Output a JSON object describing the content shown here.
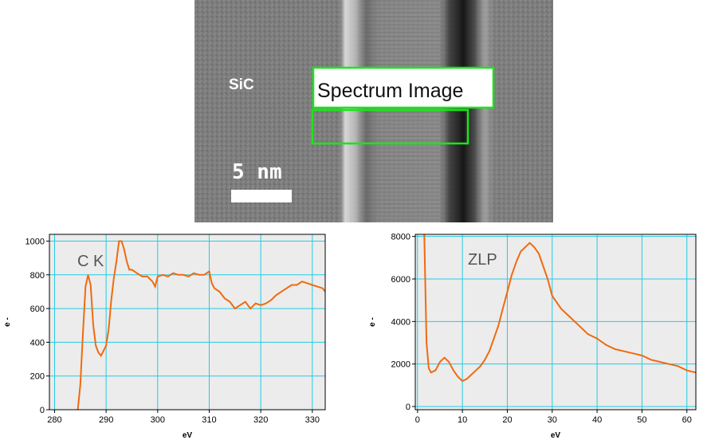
{
  "micrograph": {
    "material_label": "SiC",
    "overlay_label": "Spectrum Image",
    "scalebar_label": "5 nm",
    "region_color": "#19e619"
  },
  "colors": {
    "series": "#f06a10",
    "grid": "#22cbe3",
    "plot_bg": "#ececec"
  },
  "chart_data": [
    {
      "type": "line",
      "annotation": "C K",
      "xlabel": "eV",
      "ylabel": "e -",
      "xlim": [
        279,
        332.5
      ],
      "ylim": [
        0,
        1040
      ],
      "xticks": [
        280,
        290,
        300,
        310,
        320,
        330
      ],
      "yticks": [
        0,
        200,
        400,
        600,
        800,
        1000
      ],
      "grid": true,
      "series": [
        {
          "x": [
            284.5,
            285.0,
            285.5,
            286.0,
            286.5,
            287.0,
            287.5,
            288.0,
            288.5,
            289.0,
            289.5,
            290.0,
            290.5,
            291.0,
            291.5,
            292.0,
            292.5,
            293.0,
            293.5,
            294.0,
            294.5,
            295.0,
            296.0,
            297.0,
            298.0,
            299.0,
            299.5,
            300.0,
            301.0,
            302.0,
            303.0,
            304.0,
            305.0,
            306.0,
            307.0,
            308.0,
            309.0,
            310.0,
            310.5,
            311.0,
            312.0,
            313.0,
            314.0,
            315.0,
            316.0,
            317.0,
            318.0,
            319.0,
            320.0,
            321.0,
            322.0,
            323.0,
            324.0,
            325.0,
            326.0,
            327.0,
            328.0,
            329.0,
            330.0,
            331.0,
            332.0,
            332.5
          ],
          "y": [
            0,
            150,
            450,
            730,
            800,
            740,
            500,
            380,
            340,
            320,
            350,
            380,
            480,
            650,
            780,
            880,
            1000,
            1000,
            950,
            880,
            830,
            830,
            810,
            790,
            790,
            760,
            730,
            790,
            800,
            790,
            810,
            800,
            800,
            790,
            810,
            800,
            800,
            820,
            750,
            720,
            700,
            660,
            640,
            600,
            620,
            640,
            600,
            630,
            620,
            630,
            650,
            680,
            700,
            720,
            740,
            740,
            760,
            750,
            740,
            730,
            720,
            700
          ]
        }
      ]
    },
    {
      "type": "line",
      "annotation": "ZLP",
      "xlabel": "eV",
      "ylabel": "e -",
      "xlim": [
        -0.5,
        62
      ],
      "ylim": [
        -150,
        8100
      ],
      "xticks": [
        0,
        10,
        20,
        30,
        40,
        50,
        60
      ],
      "yticks": [
        0,
        2000,
        4000,
        6000,
        8000
      ],
      "grid": true,
      "series": [
        {
          "x": [
            1.5,
            1.8,
            2.0,
            2.5,
            3.0,
            4.0,
            5.0,
            6.0,
            7.0,
            8.0,
            9.0,
            10.0,
            11.0,
            12.0,
            13.0,
            14.0,
            15.0,
            16.0,
            17.0,
            18.0,
            19.0,
            20.0,
            21.0,
            22.0,
            23.0,
            24.0,
            25.0,
            26.0,
            27.0,
            28.0,
            29.0,
            30.0,
            32.0,
            34.0,
            36.0,
            38.0,
            40.0,
            42.0,
            44.0,
            46.0,
            48.0,
            50.0,
            52.0,
            54.0,
            56.0,
            58.0,
            60.0,
            62.0
          ],
          "y": [
            8100,
            5000,
            3000,
            1800,
            1600,
            1700,
            2100,
            2300,
            2100,
            1700,
            1400,
            1200,
            1300,
            1500,
            1700,
            1900,
            2200,
            2600,
            3200,
            3800,
            4600,
            5400,
            6200,
            6800,
            7300,
            7500,
            7700,
            7500,
            7200,
            6600,
            6000,
            5200,
            4600,
            4200,
            3800,
            3400,
            3200,
            2900,
            2700,
            2600,
            2500,
            2400,
            2200,
            2100,
            2000,
            1900,
            1700,
            1600
          ]
        }
      ]
    }
  ]
}
